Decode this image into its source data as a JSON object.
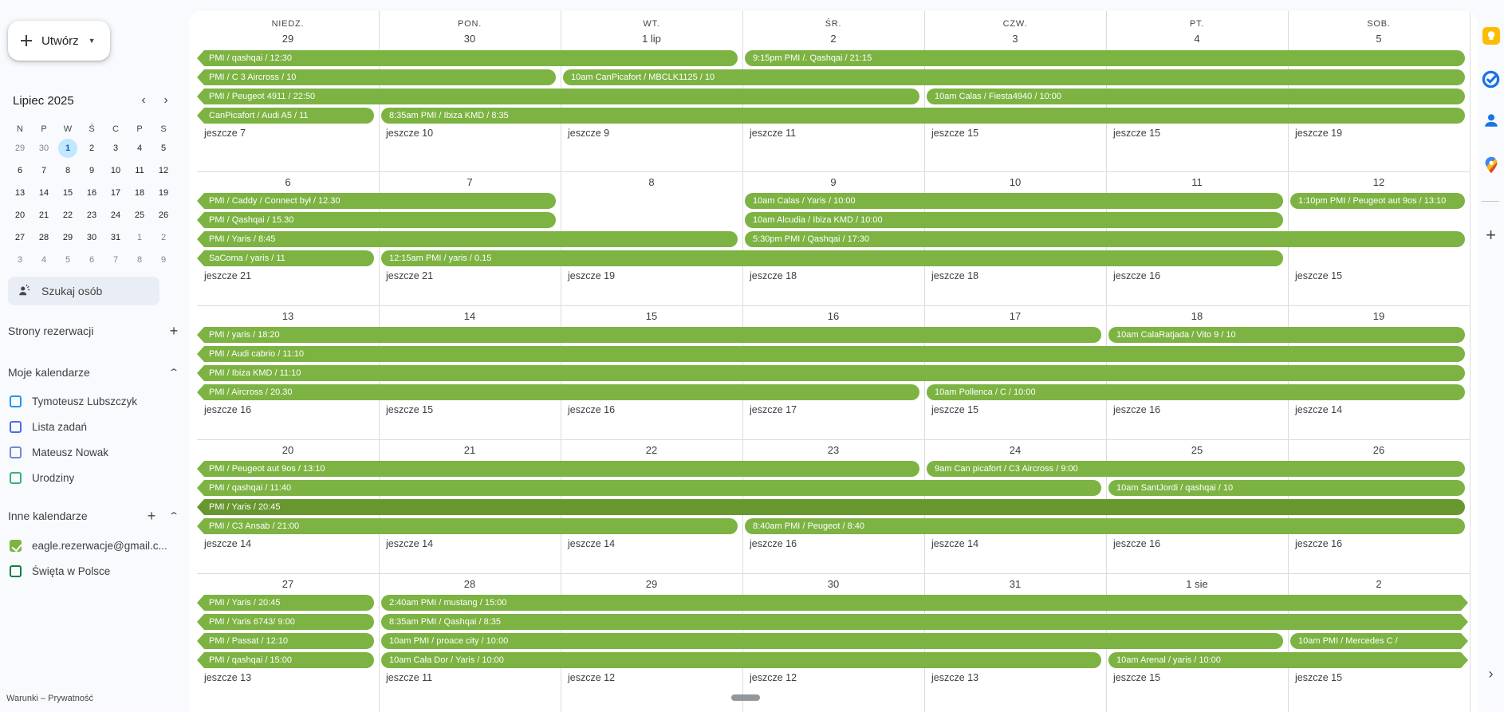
{
  "colors": {
    "page-bg": "#f8fafd",
    "card-bg": "#ffffff",
    "grid-line": "#dadce0",
    "green": "#7cb342",
    "green-dark": "#68972f",
    "text": "#3c4043",
    "muted": "#70757a",
    "today-bg": "#c2e7ff",
    "today-text": "#0b57d0",
    "search-bg": "#e9eef6"
  },
  "glyphs": {
    "caret": "▾",
    "prev": "‹",
    "next": "›",
    "plus": "+",
    "chevron_up": "⌃",
    "collapse": "›"
  },
  "sidebar": {
    "create_label": "Utwórz",
    "mini_calendar": {
      "title": "Lipiec 2025",
      "weekdays": [
        "N",
        "P",
        "W",
        "Ś",
        "C",
        "P",
        "S"
      ],
      "rows": [
        [
          {
            "d": "29",
            "m": 1
          },
          {
            "d": "30",
            "m": 1
          },
          {
            "d": "1",
            "today": 1
          },
          {
            "d": "2"
          },
          {
            "d": "3"
          },
          {
            "d": "4"
          },
          {
            "d": "5"
          }
        ],
        [
          {
            "d": "6"
          },
          {
            "d": "7"
          },
          {
            "d": "8"
          },
          {
            "d": "9"
          },
          {
            "d": "10"
          },
          {
            "d": "11"
          },
          {
            "d": "12"
          }
        ],
        [
          {
            "d": "13"
          },
          {
            "d": "14"
          },
          {
            "d": "15"
          },
          {
            "d": "16"
          },
          {
            "d": "17"
          },
          {
            "d": "18"
          },
          {
            "d": "19"
          }
        ],
        [
          {
            "d": "20"
          },
          {
            "d": "21"
          },
          {
            "d": "22"
          },
          {
            "d": "23"
          },
          {
            "d": "24"
          },
          {
            "d": "25"
          },
          {
            "d": "26"
          }
        ],
        [
          {
            "d": "27"
          },
          {
            "d": "28"
          },
          {
            "d": "29"
          },
          {
            "d": "30"
          },
          {
            "d": "31"
          },
          {
            "d": "1",
            "m": 1
          },
          {
            "d": "2",
            "m": 1
          }
        ],
        [
          {
            "d": "3",
            "m": 1
          },
          {
            "d": "4",
            "m": 1
          },
          {
            "d": "5",
            "m": 1
          },
          {
            "d": "6",
            "m": 1
          },
          {
            "d": "7",
            "m": 1
          },
          {
            "d": "8",
            "m": 1
          },
          {
            "d": "9",
            "m": 1
          }
        ]
      ]
    },
    "search_placeholder": "Szukaj osób",
    "booking_label": "Strony rezerwacji",
    "my_calendars": {
      "label": "Moje kalendarze",
      "items": [
        {
          "label": "Tymoteusz Lubszczyk",
          "color": "#2196f3",
          "checked": false
        },
        {
          "label": "Lista zadań",
          "color": "#4d6de3",
          "checked": false
        },
        {
          "label": "Mateusz Nowak",
          "color": "#7986cb",
          "checked": false
        },
        {
          "label": "Urodziny",
          "color": "#33b679",
          "checked": false
        }
      ]
    },
    "other_calendars": {
      "label": "Inne kalendarze",
      "items": [
        {
          "label": "eagle.rezerwacje@gmail.c...",
          "color": "#7cb342",
          "checked": true
        },
        {
          "label": "Święta w Polsce",
          "color": "#0b8043",
          "checked": false
        }
      ]
    },
    "terms": "Warunki – Prywatność"
  },
  "grid": {
    "day_names": [
      "NIEDZ.",
      "PON.",
      "WT.",
      "ŚR.",
      "CZW.",
      "PT.",
      "SOB."
    ],
    "weeks": [
      {
        "days": [
          "29",
          "30",
          "1 lip",
          "2",
          "3",
          "4",
          "5"
        ],
        "events": [
          {
            "r": 0,
            "s": 0,
            "e": 2,
            "la": 1,
            "t": "PMI / qashqai / 12:30"
          },
          {
            "r": 0,
            "s": 3,
            "e": 6,
            "t": "9:15pm PMI /. Qashqai / 21:15"
          },
          {
            "r": 1,
            "s": 0,
            "e": 1,
            "la": 1,
            "t": "PMI / C 3 Aircross / 10"
          },
          {
            "r": 1,
            "s": 2,
            "e": 6,
            "t": "10am CanPicafort / MBCLK1125 / 10"
          },
          {
            "r": 2,
            "s": 0,
            "e": 3,
            "la": 1,
            "t": "PMI / Peugeot 4911 / 22:50"
          },
          {
            "r": 2,
            "s": 4,
            "e": 6,
            "t": "10am Calas / Fiesta4940 / 10:00"
          },
          {
            "r": 3,
            "s": 0,
            "e": 0,
            "la": 1,
            "t": "CanPicafort / Audi A5 / 11"
          },
          {
            "r": 3,
            "s": 1,
            "e": 6,
            "t": "8:35am PMI / Ibiza KMD / 8:35"
          }
        ],
        "more": [
          "jeszcze 7",
          "jeszcze 10",
          "jeszcze 9",
          "jeszcze 11",
          "jeszcze 15",
          "jeszcze 15",
          "jeszcze 19"
        ]
      },
      {
        "days": [
          "6",
          "7",
          "8",
          "9",
          "10",
          "11",
          "12"
        ],
        "events": [
          {
            "r": 0,
            "s": 0,
            "e": 1,
            "la": 1,
            "t": "PMI / Caddy / Connect był / 12.30"
          },
          {
            "r": 0,
            "s": 3,
            "e": 5,
            "t": "10am Calas / Yaris / 10:00"
          },
          {
            "r": 0,
            "s": 6,
            "e": 6,
            "t": "1:10pm PMI / Peugeot aut 9os / 13:10"
          },
          {
            "r": 1,
            "s": 0,
            "e": 1,
            "la": 1,
            "t": "PMI / Qashqai / 15.30"
          },
          {
            "r": 1,
            "s": 3,
            "e": 5,
            "t": "10am Alcudia / Ibiza KMD / 10:00"
          },
          {
            "r": 2,
            "s": 0,
            "e": 2,
            "la": 1,
            "t": "PMI / Yaris / 8:45"
          },
          {
            "r": 2,
            "s": 3,
            "e": 6,
            "t": "5:30pm PMI / Qashqai / 17:30"
          },
          {
            "r": 3,
            "s": 0,
            "e": 0,
            "la": 1,
            "t": "SaComa / yaris / 11"
          },
          {
            "r": 3,
            "s": 1,
            "e": 5,
            "t": "12:15am PMI / yaris / 0.15"
          }
        ],
        "more": [
          "jeszcze 21",
          "jeszcze 21",
          "jeszcze 19",
          "jeszcze 18",
          "jeszcze 18",
          "jeszcze 16",
          "jeszcze 15"
        ]
      },
      {
        "days": [
          "13",
          "14",
          "15",
          "16",
          "17",
          "18",
          "19"
        ],
        "events": [
          {
            "r": 0,
            "s": 0,
            "e": 4,
            "la": 1,
            "t": "PMI / yaris / 18:20"
          },
          {
            "r": 0,
            "s": 5,
            "e": 6,
            "t": "10am CalaRatjada / Vito 9 / 10"
          },
          {
            "r": 1,
            "s": 0,
            "e": 6,
            "la": 1,
            "t": "PMI / Audi cabrio / 11:10"
          },
          {
            "r": 2,
            "s": 0,
            "e": 6,
            "la": 1,
            "t": "PMI / Ibiza KMD / 11:10"
          },
          {
            "r": 3,
            "s": 0,
            "e": 3,
            "la": 1,
            "t": "PMI / Aircross / 20.30"
          },
          {
            "r": 3,
            "s": 4,
            "e": 6,
            "t": "10am Pollenca / C / 10:00"
          }
        ],
        "more": [
          "jeszcze 16",
          "jeszcze 15",
          "jeszcze 16",
          "jeszcze 17",
          "jeszcze 15",
          "jeszcze 16",
          "jeszcze 14"
        ]
      },
      {
        "days": [
          "20",
          "21",
          "22",
          "23",
          "24",
          "25",
          "26"
        ],
        "events": [
          {
            "r": 0,
            "s": 0,
            "e": 3,
            "la": 1,
            "t": "PMI / Peugeot aut 9os / 13:10"
          },
          {
            "r": 0,
            "s": 4,
            "e": 6,
            "t": "9am Can picafort / C3 Aircross / 9:00"
          },
          {
            "r": 1,
            "s": 0,
            "e": 4,
            "la": 1,
            "t": "PMI / qashqai / 11:40"
          },
          {
            "r": 1,
            "s": 5,
            "e": 6,
            "t": "10am SantJordi / qashqai / 10"
          },
          {
            "r": 2,
            "s": 0,
            "e": 6,
            "la": 1,
            "dark": 1,
            "t": "PMI / Yaris / 20:45"
          },
          {
            "r": 3,
            "s": 0,
            "e": 2,
            "la": 1,
            "t": "PMI / C3 Ansab / 21:00"
          },
          {
            "r": 3,
            "s": 3,
            "e": 6,
            "t": "8:40am PMI / Peugeot / 8:40"
          }
        ],
        "more": [
          "jeszcze 14",
          "jeszcze 14",
          "jeszcze 14",
          "jeszcze 16",
          "jeszcze 14",
          "jeszcze 16",
          "jeszcze 16"
        ]
      },
      {
        "days": [
          "27",
          "28",
          "29",
          "30",
          "31",
          "1 sie",
          "2"
        ],
        "events": [
          {
            "r": 0,
            "s": 0,
            "e": 0,
            "la": 1,
            "t": "PMI / Yaris / 20:45"
          },
          {
            "r": 0,
            "s": 1,
            "e": 6,
            "ra": 1,
            "t": "2:40am PMI / mustang / 15:00"
          },
          {
            "r": 1,
            "s": 0,
            "e": 0,
            "la": 1,
            "t": "PMI / Yaris 6743/ 9:00"
          },
          {
            "r": 1,
            "s": 1,
            "e": 6,
            "ra": 1,
            "t": "8:35am PMI / Qashqai / 8:35"
          },
          {
            "r": 2,
            "s": 0,
            "e": 0,
            "la": 1,
            "t": "PMI / Passat / 12:10"
          },
          {
            "r": 2,
            "s": 1,
            "e": 5,
            "t": "10am PMI / proace city / 10:00"
          },
          {
            "r": 2,
            "s": 6,
            "e": 6,
            "ra": 1,
            "t": "10am PMI / Mercedes C /"
          },
          {
            "r": 3,
            "s": 0,
            "e": 0,
            "la": 1,
            "t": "PMI / qashqai / 15:00"
          },
          {
            "r": 3,
            "s": 1,
            "e": 4,
            "t": "10am Cała Dor / Yaris / 10:00"
          },
          {
            "r": 3,
            "s": 5,
            "e": 6,
            "ra": 1,
            "t": "10am Arenal / yaris / 10:00"
          }
        ],
        "more": [
          "jeszcze 13",
          "jeszcze 11",
          "jeszcze 12",
          "jeszcze 12",
          "jeszcze 13",
          "jeszcze 15",
          "jeszcze 15"
        ]
      }
    ]
  },
  "right_rail": {
    "icons": [
      "keep",
      "tasks",
      "contacts",
      "maps"
    ],
    "add_label": "+",
    "collapse_label": "›"
  }
}
